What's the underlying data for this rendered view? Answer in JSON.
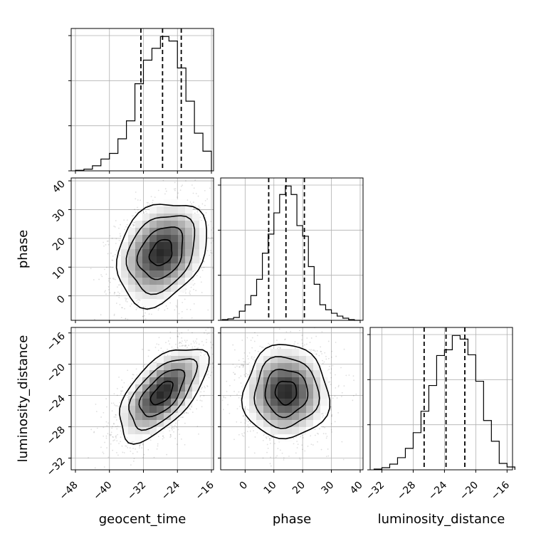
{
  "chart_data": {
    "type": "corner",
    "parameters": [
      "geocent_time",
      "phase",
      "luminosity_distance"
    ],
    "axis_labels": {
      "x": [
        "geocent_time",
        "phase",
        "luminosity_distance"
      ],
      "y": [
        "phase",
        "luminosity_distance"
      ]
    },
    "grid": true,
    "quantile_lines": "dashed",
    "ranges": {
      "geocent_time": [
        -49,
        -15.5
      ],
      "phase": [
        -8.5,
        41
      ],
      "luminosity_distance": [
        -33.5,
        -15.3
      ]
    },
    "ticks": {
      "geocent_time": [
        -48,
        -40,
        -32,
        -24,
        -16
      ],
      "phase": [
        0,
        10,
        20,
        30,
        40
      ],
      "luminosity_distance": [
        -32,
        -28,
        -24,
        -20,
        -16
      ]
    },
    "tick_labels": {
      "geocent_time": [
        "−48",
        "−40",
        "−32",
        "−24",
        "−16"
      ],
      "phase": [
        "0",
        "10",
        "20",
        "30",
        "40"
      ],
      "luminosity_distance": [
        "−32",
        "−28",
        "−24",
        "−20",
        "−16"
      ]
    },
    "diagonal": [
      {
        "parameter": "geocent_time",
        "quantiles": [
          -32.6,
          -27.5,
          -23.1
        ],
        "bin_edges": [
          -48,
          -46,
          -44,
          -42,
          -40,
          -38,
          -36,
          -34,
          -32,
          -30,
          -28,
          -26,
          -24,
          -22,
          -20,
          -18,
          -16
        ],
        "counts": [
          1,
          3,
          9,
          21,
          31,
          57,
          89,
          155,
          197,
          218,
          239,
          231,
          183,
          124,
          67,
          35
        ]
      },
      {
        "parameter": "phase",
        "quantiles": [
          8.2,
          14.2,
          20.6
        ],
        "bin_edges": [
          -8,
          -6,
          -4,
          -2,
          0,
          2,
          4,
          6,
          8,
          10,
          12,
          14,
          16,
          18,
          20,
          22,
          24,
          26,
          28,
          30,
          32,
          34,
          36,
          38,
          40
        ],
        "counts": [
          1,
          2,
          4,
          13,
          22,
          35,
          58,
          95,
          122,
          152,
          178,
          190,
          178,
          134,
          119,
          76,
          51,
          22,
          15,
          10,
          6,
          3,
          1,
          0
        ]
      },
      {
        "parameter": "luminosity_distance",
        "quantiles": [
          -26.6,
          -23.8,
          -21.4
        ],
        "bin_edges": [
          -33,
          -32,
          -31,
          -30,
          -29,
          -28,
          -27,
          -26,
          -25,
          -24,
          -23,
          -22,
          -21,
          -20,
          -19,
          -18,
          -17,
          -16,
          -15
        ],
        "counts": [
          1,
          3,
          8,
          17,
          30,
          52,
          82,
          118,
          160,
          168,
          188,
          183,
          161,
          124,
          69,
          40,
          9,
          4
        ]
      }
    ],
    "joint": [
      {
        "x": "geocent_time",
        "y": "phase",
        "mean": [
          -27.8,
          15.0
        ],
        "std": [
          5.3,
          9.0
        ],
        "corr": 0.27
      },
      {
        "x": "geocent_time",
        "y": "luminosity_distance",
        "mean": [
          -27.6,
          -23.7
        ],
        "std": [
          5.2,
          3.0
        ],
        "corr": 0.6
      },
      {
        "x": "phase",
        "y": "luminosity_distance",
        "mean": [
          14.2,
          -23.6
        ],
        "std": [
          7.4,
          3.0
        ],
        "corr": 0.0
      }
    ]
  }
}
